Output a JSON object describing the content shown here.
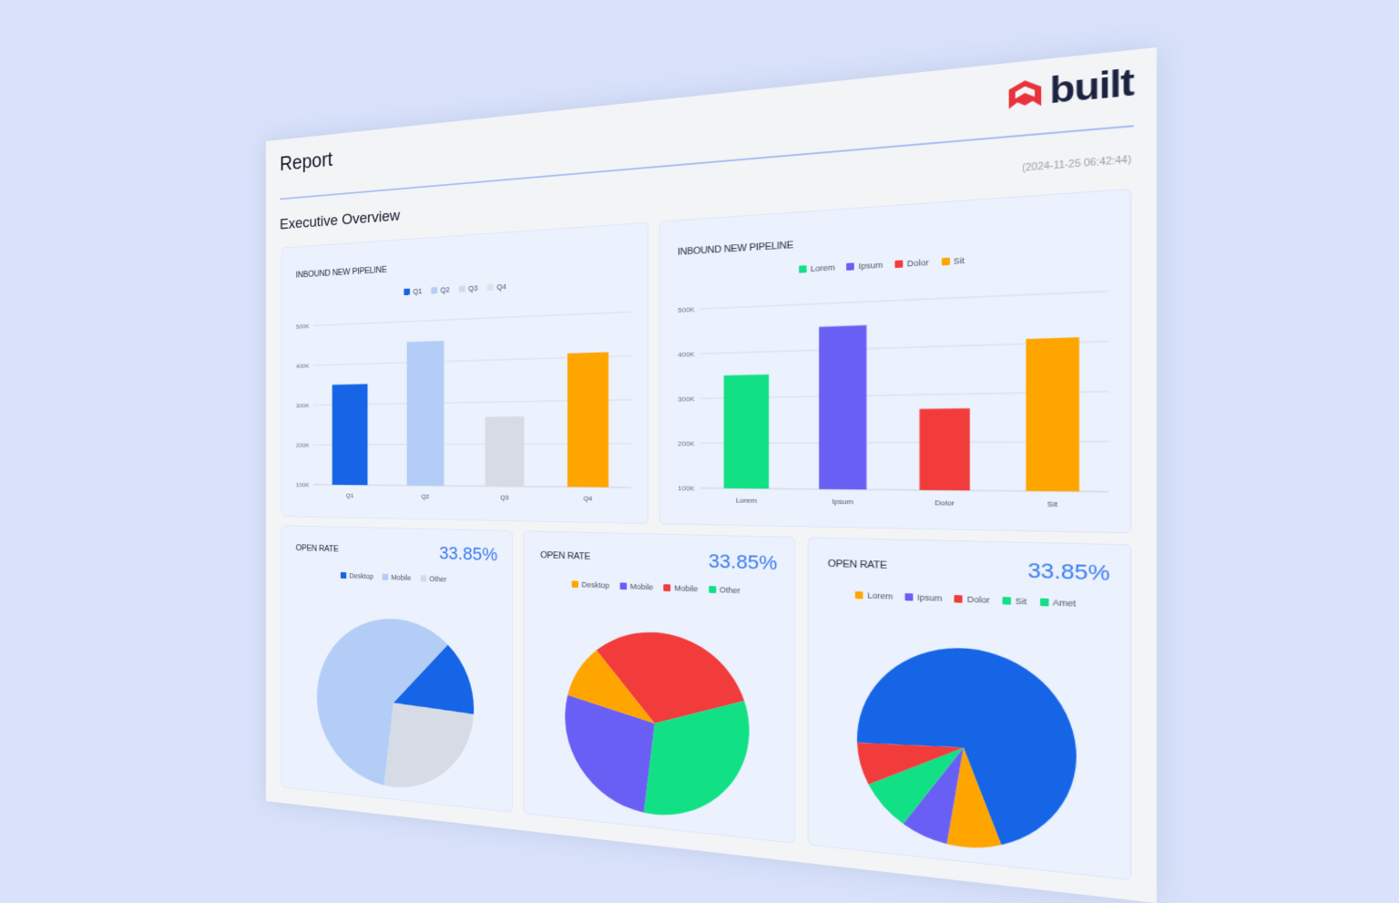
{
  "header": {
    "title": "Report",
    "logo_text": "built",
    "logo_color": "#e8323c",
    "timestamp": "(2024-11-25 06:42:44)",
    "section_title": "Executive Overview"
  },
  "colors": {
    "accent": "#3a7bf0",
    "background": "#d9e2fa",
    "sheet": "#f3f4f6",
    "card": "#ebf1fd"
  },
  "chart_data": [
    {
      "type": "bar",
      "title": "INBOUND NEW PIPELINE",
      "categories": [
        "Q1",
        "Q2",
        "Q3",
        "Q4"
      ],
      "values": [
        350000,
        450000,
        265000,
        410000
      ],
      "bar_colors": [
        "#1565e6",
        "#b3cdf6",
        "#d6dbe5",
        "#ffa500"
      ],
      "legend": [
        {
          "name": "Q1",
          "color": "#1565e6"
        },
        {
          "name": "Q2",
          "color": "#b3cdf6"
        },
        {
          "name": "Q3",
          "color": "#d6dbe5"
        },
        {
          "name": "Q4",
          "color": "#dfe3ea"
        }
      ],
      "yticks": [
        "100K",
        "200K",
        "300K",
        "400K",
        "500K"
      ],
      "ylim": [
        100000,
        500000
      ],
      "grid": true,
      "legend_placement": "top"
    },
    {
      "type": "bar",
      "title": "INBOUND NEW PIPELINE",
      "categories": [
        "Lorem",
        "Ipsum",
        "Dolor",
        "Sit"
      ],
      "values": [
        350000,
        450000,
        270000,
        410000
      ],
      "bar_colors": [
        "#12e085",
        "#6a5ff5",
        "#f23b3b",
        "#ffa500"
      ],
      "legend": [
        {
          "name": "Lorem",
          "color": "#12e085"
        },
        {
          "name": "Ipsum",
          "color": "#6a5ff5"
        },
        {
          "name": "Dolor",
          "color": "#f23b3b"
        },
        {
          "name": "Sit",
          "color": "#ffa500"
        }
      ],
      "yticks": [
        "100K",
        "200K",
        "300K",
        "400K",
        "500K"
      ],
      "ylim": [
        100000,
        500000
      ],
      "grid": true,
      "legend_placement": "top"
    },
    {
      "type": "pie",
      "title": "OPEN RATE",
      "headline": "33.85%",
      "legend": [
        {
          "name": "Desktop",
          "color": "#1565e6"
        },
        {
          "name": "Mobile",
          "color": "#b3cdf6"
        },
        {
          "name": "Other",
          "color": "#d6dbe5"
        }
      ],
      "slices": [
        {
          "label": "Desktop",
          "value": 14,
          "color": "#1565e6"
        },
        {
          "label": "Other",
          "value": 26,
          "color": "#d6dbe5"
        },
        {
          "label": "Mobile",
          "value": 60,
          "color": "#b3cdf6"
        }
      ]
    },
    {
      "type": "pie",
      "title": "OPEN RATE",
      "headline": "33.85%",
      "legend": [
        {
          "name": "Desktop",
          "color": "#ffa500"
        },
        {
          "name": "Mobile",
          "color": "#6a5ff5"
        },
        {
          "name": "Mobile",
          "color": "#f23b3b"
        },
        {
          "name": "Other",
          "color": "#12e085"
        }
      ],
      "slices": [
        {
          "label": "Mobile",
          "value": 31,
          "color": "#f23b3b"
        },
        {
          "label": "Other",
          "value": 32,
          "color": "#12e085"
        },
        {
          "label": "Mobile",
          "value": 27,
          "color": "#6a5ff5"
        },
        {
          "label": "Desktop",
          "value": 10,
          "color": "#ffa500"
        }
      ]
    },
    {
      "type": "pie",
      "title": "OPEN RATE",
      "headline": "33.85%",
      "legend": [
        {
          "name": "Lorem",
          "color": "#ffa500"
        },
        {
          "name": "Ipsum",
          "color": "#6a5ff5"
        },
        {
          "name": "Dolor",
          "color": "#f23b3b"
        },
        {
          "name": "Sit",
          "color": "#12e085"
        },
        {
          "name": "Amet",
          "color": "#12e085"
        }
      ],
      "slices": [
        {
          "label": "",
          "value": 70,
          "color": "#1565e6"
        },
        {
          "label": "Lorem",
          "value": 8,
          "color": "#ffa500"
        },
        {
          "label": "Ipsum",
          "value": 7,
          "color": "#6a5ff5"
        },
        {
          "label": "Sit",
          "value": 8,
          "color": "#12e085"
        },
        {
          "label": "Dolor",
          "value": 7,
          "color": "#f23b3b"
        }
      ]
    }
  ]
}
